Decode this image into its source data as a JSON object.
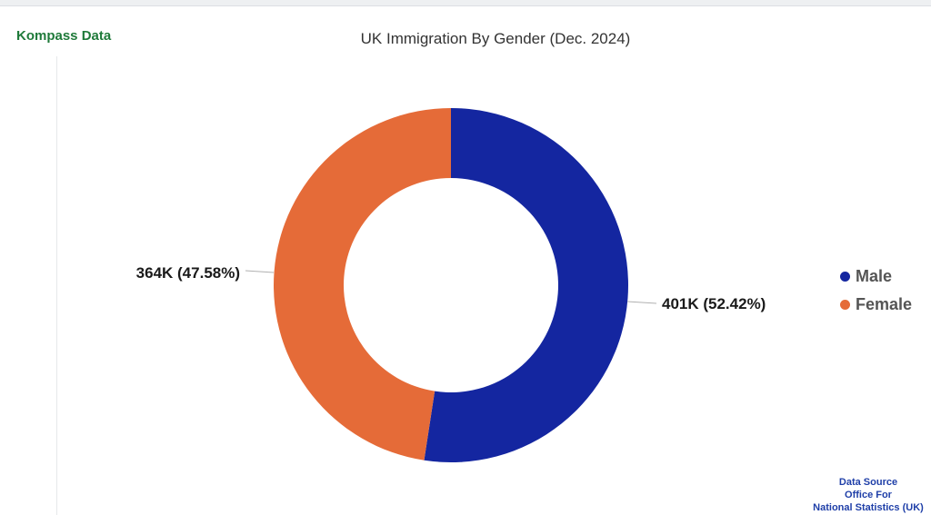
{
  "brand": "Kompass Data",
  "source": {
    "line1": "Data Source",
    "line2": "Office For",
    "line3": "National Statistics (UK)"
  },
  "chart_data": {
    "type": "pie",
    "variant": "donut",
    "title": "UK Immigration By Gender (Dec. 2024)",
    "categories": [
      "Male",
      "Female"
    ],
    "values": [
      401,
      364
    ],
    "percentages": [
      52.42,
      47.58
    ],
    "data_labels": [
      "401K (52.42%)",
      "364K (47.58%)"
    ],
    "colors": [
      "#1426a0",
      "#e56b38"
    ],
    "legend_placement": "right"
  },
  "legend": [
    {
      "label": "Male",
      "color": "#1426a0"
    },
    {
      "label": "Female",
      "color": "#e56b38"
    }
  ]
}
